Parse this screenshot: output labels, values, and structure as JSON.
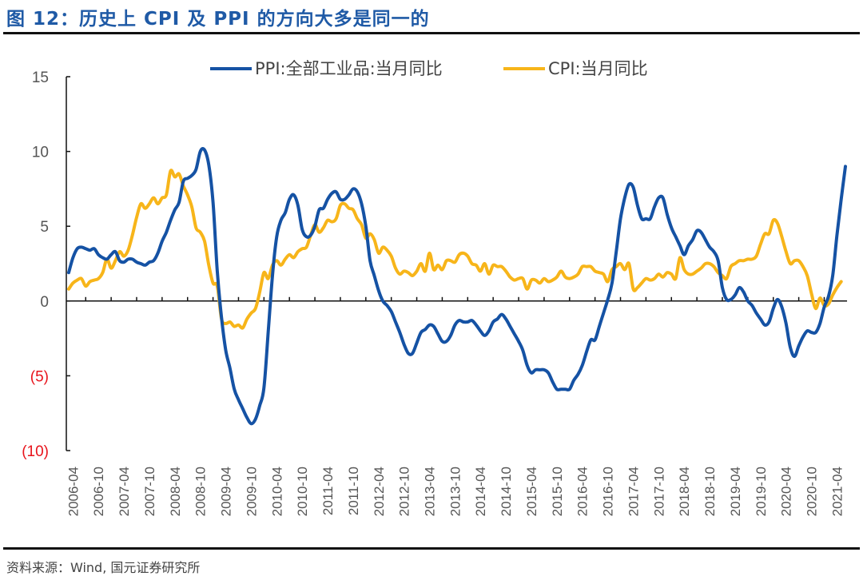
{
  "header": {
    "title": "图 12：历史上 CPI 及 PPI 的方向大多是同一的"
  },
  "footer": {
    "source": "资料来源：Wind, 国元证券研究所"
  },
  "chart_data": {
    "type": "line",
    "title": "图 12：历史上 CPI 及 PPI 的方向大多是同一的",
    "xlabel": "",
    "ylabel": "",
    "ylim": [
      -10,
      15
    ],
    "yticks": [
      15,
      10,
      5,
      0,
      -5,
      -10
    ],
    "ytick_labels": [
      "15",
      "10",
      "5",
      "0",
      "(5)",
      "(10)"
    ],
    "negative_tick_color": "#e8131b",
    "grid": false,
    "legend_position": "top-center",
    "x_start": "2006-03",
    "x_end": "2021-04",
    "xtick_labels": [
      "2006-04",
      "2006-10",
      "2007-04",
      "2007-10",
      "2008-04",
      "2008-10",
      "2009-04",
      "2009-10",
      "2010-04",
      "2010-10",
      "2011-04",
      "2011-10",
      "2012-04",
      "2012-10",
      "2013-04",
      "2013-10",
      "2014-04",
      "2014-10",
      "2015-04",
      "2015-10",
      "2016-04",
      "2016-10",
      "2017-04",
      "2017-10",
      "2018-04",
      "2018-10",
      "2019-04",
      "2019-10",
      "2020-04",
      "2020-10",
      "2021-04"
    ],
    "series": [
      {
        "name": "PPI:全部工业品:当月同比",
        "color": "#1552a4",
        "values": [
          1.9,
          2.9,
          3.5,
          3.6,
          3.5,
          3.4,
          3.5,
          3.1,
          2.9,
          2.8,
          3.1,
          3.3,
          2.7,
          2.6,
          2.8,
          2.8,
          2.6,
          2.5,
          2.4,
          2.6,
          2.7,
          3.2,
          4.0,
          4.6,
          5.4,
          6.1,
          6.6,
          8.0,
          8.2,
          8.4,
          8.8,
          10.0,
          10.1,
          9.1,
          6.6,
          2.0,
          -1.1,
          -3.3,
          -4.5,
          -5.9,
          -6.6,
          -7.2,
          -7.8,
          -8.2,
          -7.9,
          -7.0,
          -5.8,
          -2.1,
          1.7,
          4.3,
          5.4,
          5.9,
          6.8,
          7.1,
          6.4,
          4.8,
          4.3,
          4.4,
          5.0,
          6.1,
          6.2,
          6.8,
          7.2,
          7.3,
          6.8,
          6.8,
          7.1,
          7.5,
          7.3,
          6.5,
          5.0,
          2.7,
          1.7,
          0.7,
          0.0,
          -0.3,
          -0.7,
          -1.4,
          -2.1,
          -2.9,
          -3.5,
          -3.5,
          -2.8,
          -2.1,
          -1.9,
          -1.6,
          -1.7,
          -2.2,
          -2.7,
          -2.7,
          -2.3,
          -1.6,
          -1.3,
          -1.4,
          -1.4,
          -1.3,
          -1.6,
          -2.0,
          -2.3,
          -2.0,
          -1.4,
          -1.2,
          -0.9,
          -1.2,
          -1.7,
          -2.2,
          -2.7,
          -3.3,
          -4.3,
          -4.8,
          -4.6,
          -4.6,
          -4.6,
          -4.8,
          -5.4,
          -5.9,
          -5.9,
          -5.9,
          -5.9,
          -5.3,
          -4.9,
          -4.3,
          -3.4,
          -2.6,
          -2.6,
          -1.7,
          -0.8,
          0.1,
          1.2,
          3.3,
          5.5,
          6.9,
          7.8,
          7.6,
          6.4,
          5.5,
          5.5,
          5.5,
          6.3,
          6.9,
          6.9,
          5.8,
          4.9,
          4.3,
          3.7,
          3.1,
          3.7,
          4.1,
          4.7,
          4.6,
          4.1,
          3.6,
          3.3,
          2.7,
          0.9,
          0.1,
          0.1,
          0.4,
          0.9,
          0.6,
          0.0,
          -0.3,
          -0.8,
          -1.2,
          -1.6,
          -1.4,
          -0.5,
          0.1,
          -0.4,
          -1.5,
          -3.1,
          -3.7,
          -3.0,
          -2.4,
          -2.0,
          -2.1,
          -2.1,
          -1.5,
          -0.4,
          0.3,
          1.7,
          4.4,
          6.8,
          9.0
        ]
      },
      {
        "name": "CPI:当月同比",
        "color": "#f7b51a",
        "values": [
          0.8,
          1.2,
          1.4,
          1.5,
          1.0,
          1.3,
          1.4,
          1.5,
          1.9,
          2.8,
          2.2,
          2.7,
          3.3,
          3.0,
          3.4,
          4.4,
          5.6,
          6.5,
          6.2,
          6.5,
          6.9,
          6.5,
          6.9,
          7.1,
          8.7,
          8.3,
          8.5,
          7.7,
          7.1,
          6.3,
          4.9,
          4.6,
          4.0,
          2.4,
          1.2,
          1.0,
          -1.2,
          -1.5,
          -1.4,
          -1.7,
          -1.6,
          -1.8,
          -1.2,
          -0.8,
          -0.5,
          0.6,
          1.9,
          1.5,
          2.4,
          2.7,
          2.4,
          2.8,
          3.1,
          2.9,
          3.3,
          3.5,
          3.6,
          4.4,
          5.1,
          4.6,
          4.9,
          5.4,
          5.3,
          5.5,
          6.4,
          6.5,
          6.2,
          6.1,
          5.5,
          5.1,
          4.2,
          4.5,
          4.1,
          3.2,
          3.6,
          3.4,
          3.0,
          2.2,
          1.8,
          2.0,
          1.9,
          1.7,
          2.0,
          2.5,
          2.0,
          3.2,
          2.1,
          2.4,
          2.1,
          2.7,
          2.7,
          2.6,
          3.1,
          3.2,
          3.0,
          2.5,
          2.4,
          2.0,
          2.5,
          1.8,
          2.4,
          2.3,
          2.3,
          2.0,
          1.6,
          1.4,
          1.5,
          1.5,
          0.8,
          1.4,
          1.4,
          1.2,
          1.5,
          1.3,
          1.4,
          1.6,
          2.0,
          1.6,
          1.5,
          1.6,
          1.8,
          2.3,
          2.3,
          2.3,
          2.0,
          1.9,
          1.8,
          1.3,
          2.1,
          2.3,
          2.5,
          2.1,
          2.5,
          0.8,
          0.9,
          1.2,
          1.5,
          1.4,
          1.5,
          1.8,
          1.6,
          1.9,
          1.8,
          1.5,
          2.9,
          2.1,
          1.8,
          1.8,
          2.0,
          2.2,
          2.5,
          2.5,
          2.3,
          1.9,
          1.7,
          1.5,
          2.3,
          2.5,
          2.7,
          2.7,
          2.8,
          2.8,
          3.0,
          3.8,
          4.5,
          4.5,
          5.4,
          5.2,
          4.3,
          3.3,
          2.5,
          2.7,
          2.7,
          2.3,
          1.7,
          0.5,
          -0.5,
          0.2,
          -0.3,
          -0.2,
          0.4,
          0.9,
          1.3
        ]
      }
    ]
  }
}
